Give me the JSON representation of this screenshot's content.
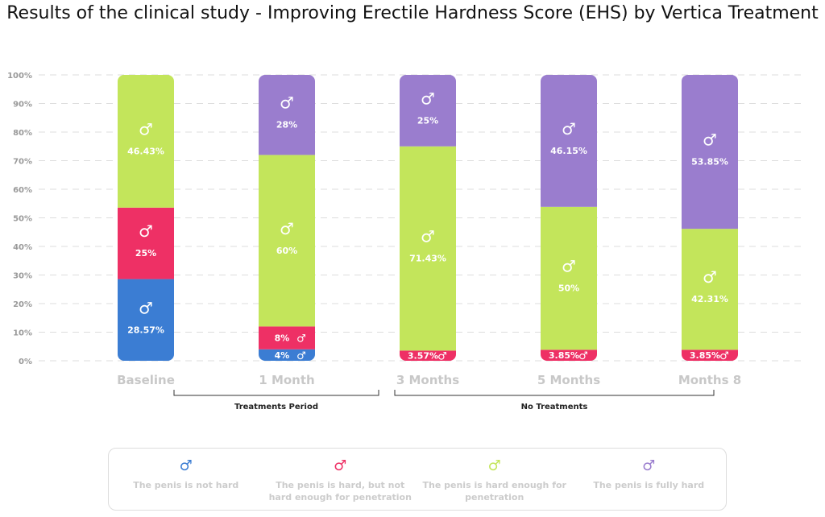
{
  "chart_data": {
    "type": "bar",
    "stacked": true,
    "title": "Results of the clinical study - Improving Erectile Hardness Score (EHS) by Vertica Treatment",
    "categories": [
      "Baseline",
      "1 Month",
      "3 Months",
      "5 Months",
      "Months 8"
    ],
    "yticks": [
      "0%",
      "10%",
      "20%",
      "30%",
      "40%",
      "50%",
      "60%",
      "70%",
      "80%",
      "90%",
      "100%"
    ],
    "ylim": [
      0,
      100
    ],
    "grid": true,
    "legend_position": "bottom",
    "series": [
      {
        "name": "The penis is not hard",
        "color": "#3b7dd3",
        "icon": "♂",
        "values": [
          28.57,
          4,
          0,
          0,
          0
        ],
        "labels": [
          "28.57%",
          "4%",
          "",
          "",
          ""
        ]
      },
      {
        "name": "The penis is hard, but not hard enough for penetration",
        "color": "#ee3065",
        "icon": "♂",
        "values": [
          25,
          8,
          3.57,
          3.85,
          3.85
        ],
        "labels": [
          "25%",
          "8%",
          "3.57%",
          "3.85%",
          "3.85%"
        ]
      },
      {
        "name": "The penis is hard enough for penetration",
        "color": "#c3e55b",
        "icon": "♂",
        "values": [
          46.43,
          60,
          71.43,
          50,
          42.31
        ],
        "labels": [
          "46.43%",
          "60%",
          "71.43%",
          "50%",
          "42.31%"
        ]
      },
      {
        "name": "The penis is fully hard",
        "color": "#9a7dce",
        "icon": "♂",
        "values": [
          0,
          28,
          25,
          46.15,
          53.85
        ],
        "labels": [
          "",
          "28%",
          "25%",
          "46.15%",
          "53.85%"
        ]
      }
    ],
    "annotations": [
      {
        "text": "Treatments Period",
        "from": "Baseline",
        "to": "1 Month"
      },
      {
        "text": "No Treatments",
        "from": "3 Months",
        "to": "Months 8"
      }
    ]
  }
}
